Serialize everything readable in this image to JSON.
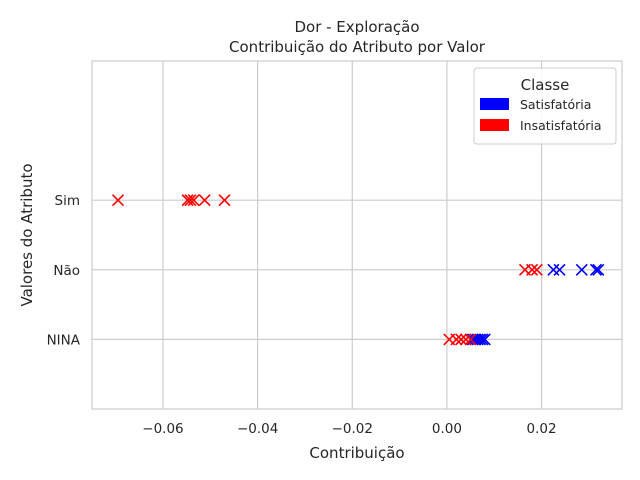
{
  "chart_data": {
    "type": "scatter",
    "title": "Dor - Exploração",
    "subtitle": "Contribuição do Atributo por Valor",
    "xlabel": "Contribuição",
    "ylabel": "Valores do Atributo",
    "xlim": [
      -0.075,
      0.037
    ],
    "ylim": [
      -1.0,
      4.0
    ],
    "x_ticks": [
      -0.06,
      -0.04,
      -0.02,
      0.0,
      0.02
    ],
    "x_tick_labels": [
      "−0.06",
      "−0.04",
      "−0.02",
      "0.00",
      "0.02"
    ],
    "categories": [
      "NINA",
      "Não",
      "Sim"
    ],
    "grid": true,
    "marker": "x",
    "legend": {
      "title": "Classe",
      "placement": "top-right",
      "entries": [
        {
          "label": "Satisfatória",
          "color": "#0000ff"
        },
        {
          "label": "Insatisfatória",
          "color": "#ff0000"
        }
      ]
    },
    "series": [
      {
        "name": "Satisfatória",
        "color": "#0000ff",
        "points": [
          {
            "x": 0.0055,
            "y": "NINA"
          },
          {
            "x": 0.006,
            "y": "NINA"
          },
          {
            "x": 0.0065,
            "y": "NINA"
          },
          {
            "x": 0.007,
            "y": "NINA"
          },
          {
            "x": 0.0075,
            "y": "NINA"
          },
          {
            "x": 0.008,
            "y": "NINA"
          },
          {
            "x": 0.0225,
            "y": "Não"
          },
          {
            "x": 0.0238,
            "y": "Não"
          },
          {
            "x": 0.0285,
            "y": "Não"
          },
          {
            "x": 0.0315,
            "y": "Não"
          },
          {
            "x": 0.032,
            "y": "Não"
          }
        ]
      },
      {
        "name": "Insatisfatória",
        "color": "#ff0000",
        "points": [
          {
            "x": 0.0005,
            "y": "NINA"
          },
          {
            "x": 0.002,
            "y": "NINA"
          },
          {
            "x": 0.003,
            "y": "NINA"
          },
          {
            "x": 0.004,
            "y": "NINA"
          },
          {
            "x": 0.005,
            "y": "NINA"
          },
          {
            "x": 0.0165,
            "y": "Não"
          },
          {
            "x": 0.018,
            "y": "Não"
          },
          {
            "x": 0.019,
            "y": "Não"
          },
          {
            "x": -0.0695,
            "y": "Sim"
          },
          {
            "x": -0.0548,
            "y": "Sim"
          },
          {
            "x": -0.0542,
            "y": "Sim"
          },
          {
            "x": -0.0535,
            "y": "Sim"
          },
          {
            "x": -0.0512,
            "y": "Sim"
          },
          {
            "x": -0.047,
            "y": "Sim"
          }
        ]
      }
    ]
  }
}
